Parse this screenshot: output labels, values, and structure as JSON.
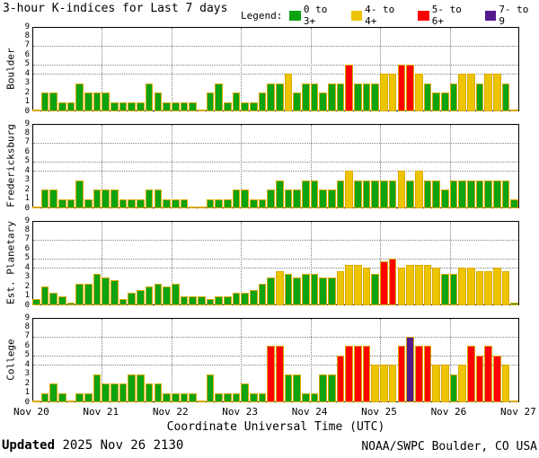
{
  "title": "3-hour K-indices for Last 7 days",
  "legend": {
    "label": "Legend:",
    "items": [
      {
        "label": "0 to 3+",
        "color": "#0fa30f"
      },
      {
        "label": "4- to 4+",
        "color": "#edc400"
      },
      {
        "label": "5- to 6+",
        "color": "#ff0000"
      },
      {
        "label": "7- to 9",
        "color": "#551a8b"
      }
    ]
  },
  "x_axis": {
    "tick_labels": [
      "Nov 20",
      "Nov 21",
      "Nov 22",
      "Nov 23",
      "Nov 24",
      "Nov 25",
      "Nov 26",
      "Nov 27"
    ],
    "title": "Coordinate Universal Time (UTC)"
  },
  "y_axis": {
    "ticks": [
      0,
      1,
      2,
      3,
      4,
      5,
      6,
      7,
      8,
      9
    ],
    "gridlines_at": [
      4,
      5,
      7
    ],
    "range": [
      0,
      9
    ]
  },
  "footer": {
    "updated_label": "Updated",
    "updated_value": " 2025 Nov 26 2130",
    "credit": "NOAA/SWPC Boulder, CO USA"
  },
  "chart_data": {
    "type": "bar",
    "days": 7,
    "bars_per_day": 8,
    "ylim": [
      0,
      9
    ],
    "grid": "dotted day boundaries vertical; K=4,5,7 horizontal",
    "legend_position": "top-right",
    "colors": {
      "green": "#0fa30f",
      "yellow": "#edc400",
      "red": "#ff0000",
      "purple": "#551a8b",
      "bar_border": "#d9a900"
    },
    "color_rule": "K<3.5 green, 3.5-4.5 yellow, 4.5-6.5 red, >6.5 purple",
    "panels": [
      {
        "station": "Boulder",
        "values": [
          0,
          2,
          2,
          1,
          1,
          3,
          2,
          2,
          2,
          1,
          1,
          1,
          1,
          3,
          2,
          1,
          1,
          1,
          1,
          0,
          2,
          3,
          1,
          2,
          1,
          1,
          2,
          3,
          3,
          4,
          2,
          3,
          3,
          2,
          3,
          3,
          5,
          3,
          3,
          3,
          4,
          4,
          5,
          5,
          4,
          3,
          2,
          2,
          3,
          4,
          4,
          3,
          4,
          4,
          3,
          0
        ]
      },
      {
        "station": "Fredericksburg",
        "values": [
          0,
          2,
          2,
          1,
          1,
          3,
          1,
          2,
          2,
          2,
          1,
          1,
          1,
          2,
          2,
          1,
          1,
          1,
          0,
          0,
          1,
          1,
          1,
          2,
          2,
          1,
          1,
          2,
          3,
          2,
          2,
          3,
          3,
          2,
          2,
          3,
          4,
          3,
          3,
          3,
          3,
          3,
          4,
          3,
          4,
          3,
          3,
          2,
          3,
          3,
          3,
          3,
          3,
          3,
          3,
          1
        ]
      },
      {
        "station": "Est. Planetary",
        "values": [
          0.67,
          2,
          1.33,
          1,
          0.33,
          2.33,
          2.33,
          3.33,
          3,
          2.67,
          0.67,
          1.33,
          1.67,
          2,
          2.33,
          2,
          2.33,
          1,
          1,
          1,
          0.67,
          1,
          1,
          1.33,
          1.33,
          1.67,
          2.33,
          3,
          3.67,
          3.33,
          3,
          3.33,
          3.33,
          3,
          3,
          3.67,
          4.33,
          4.33,
          4,
          3.33,
          4.67,
          5,
          4,
          4.33,
          4.33,
          4.33,
          4,
          3.33,
          3.33,
          4,
          4,
          3.67,
          3.67,
          4,
          3.67,
          0.33
        ]
      },
      {
        "station": "College",
        "values": [
          0,
          1,
          2,
          1,
          0,
          1,
          1,
          3,
          2,
          2,
          2,
          3,
          3,
          2,
          2,
          1,
          1,
          1,
          1,
          0,
          3,
          1,
          1,
          1,
          2,
          1,
          1,
          6,
          6,
          3,
          3,
          1,
          1,
          3,
          3,
          5,
          6,
          6,
          6,
          4,
          4,
          4,
          6,
          7,
          6,
          6,
          4,
          4,
          3,
          4,
          6,
          5,
          6,
          5,
          4,
          0
        ]
      }
    ]
  }
}
